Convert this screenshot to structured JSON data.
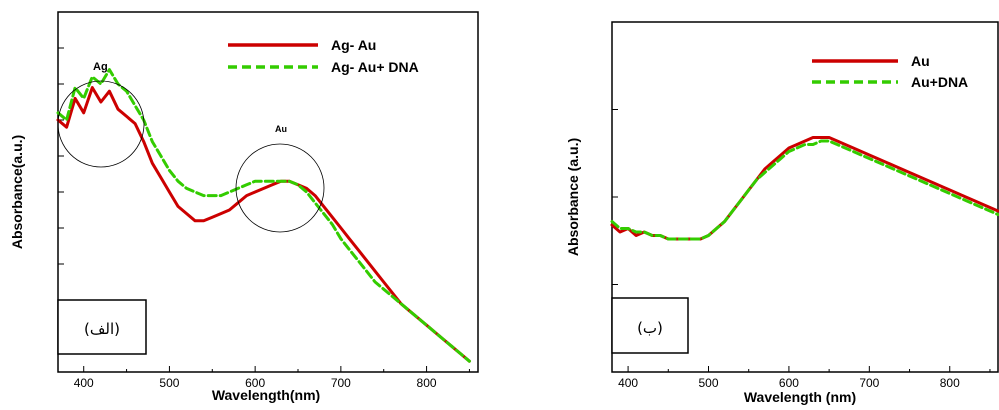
{
  "chart_data": [
    {
      "type": "line",
      "title": "",
      "xlabel": "Wavelength(nm)",
      "ylabel": "Absorbance(a.u.)",
      "xlim": [
        370,
        860
      ],
      "x_ticks": [
        "400",
        "500",
        "600",
        "700",
        "800"
      ],
      "y_ticks_labeled": false,
      "legend_position": "top-right",
      "panel_label": "(الف)",
      "annotations": [
        "Ag",
        "Au"
      ],
      "series": [
        {
          "name": "Ag- Au",
          "color": "#cc0000",
          "style": "solid",
          "x": [
            370,
            380,
            390,
            400,
            410,
            420,
            430,
            440,
            450,
            460,
            470,
            480,
            490,
            500,
            510,
            520,
            530,
            540,
            550,
            560,
            570,
            580,
            590,
            600,
            610,
            620,
            630,
            640,
            650,
            660,
            670,
            680,
            690,
            700,
            710,
            720,
            730,
            740,
            750,
            760,
            770,
            780,
            790,
            800,
            810,
            820,
            830,
            840,
            850
          ],
          "y": [
            0.7,
            0.68,
            0.76,
            0.72,
            0.79,
            0.75,
            0.78,
            0.73,
            0.71,
            0.69,
            0.64,
            0.58,
            0.54,
            0.5,
            0.46,
            0.44,
            0.42,
            0.42,
            0.43,
            0.44,
            0.45,
            0.47,
            0.49,
            0.5,
            0.51,
            0.52,
            0.53,
            0.53,
            0.52,
            0.51,
            0.49,
            0.46,
            0.43,
            0.4,
            0.37,
            0.34,
            0.31,
            0.28,
            0.25,
            0.22,
            0.19,
            0.17,
            0.15,
            0.13,
            0.11,
            0.09,
            0.07,
            0.05,
            0.03
          ]
        },
        {
          "name": "Ag- Au+ DNA",
          "color": "#33cc00",
          "style": "dashed",
          "x": [
            370,
            380,
            390,
            400,
            410,
            420,
            430,
            440,
            450,
            460,
            470,
            480,
            490,
            500,
            510,
            520,
            530,
            540,
            550,
            560,
            570,
            580,
            590,
            600,
            610,
            620,
            630,
            640,
            650,
            660,
            670,
            680,
            690,
            700,
            710,
            720,
            730,
            740,
            750,
            760,
            770,
            780,
            790,
            800,
            810,
            820,
            830,
            840,
            850
          ],
          "y": [
            0.72,
            0.7,
            0.79,
            0.76,
            0.82,
            0.8,
            0.84,
            0.8,
            0.78,
            0.74,
            0.7,
            0.64,
            0.6,
            0.56,
            0.53,
            0.51,
            0.5,
            0.49,
            0.49,
            0.49,
            0.5,
            0.51,
            0.52,
            0.53,
            0.53,
            0.53,
            0.53,
            0.53,
            0.52,
            0.5,
            0.47,
            0.44,
            0.41,
            0.37,
            0.34,
            0.31,
            0.28,
            0.25,
            0.23,
            0.21,
            0.19,
            0.17,
            0.15,
            0.13,
            0.11,
            0.09,
            0.07,
            0.05,
            0.03
          ]
        }
      ]
    },
    {
      "type": "line",
      "title": "",
      "xlabel": "Wavelength (nm)",
      "ylabel": "Absorbance (a.u.)",
      "xlim": [
        380,
        860
      ],
      "x_ticks": [
        "400",
        "500",
        "600",
        "700",
        "800"
      ],
      "y_ticks_labeled": false,
      "legend_position": "top-right",
      "panel_label": "(ب)",
      "series": [
        {
          "name": "Au",
          "color": "#cc0000",
          "style": "solid",
          "x": [
            380,
            390,
            400,
            410,
            420,
            430,
            440,
            450,
            460,
            470,
            480,
            490,
            500,
            510,
            520,
            530,
            540,
            550,
            560,
            570,
            580,
            590,
            600,
            610,
            620,
            630,
            640,
            650,
            660,
            670,
            680,
            690,
            700,
            710,
            720,
            730,
            740,
            750,
            760,
            770,
            780,
            790,
            800,
            810,
            820,
            830,
            840,
            850,
            860
          ],
          "y": [
            0.42,
            0.4,
            0.41,
            0.39,
            0.4,
            0.39,
            0.39,
            0.38,
            0.38,
            0.38,
            0.38,
            0.38,
            0.39,
            0.41,
            0.43,
            0.46,
            0.49,
            0.52,
            0.55,
            0.58,
            0.6,
            0.62,
            0.64,
            0.65,
            0.66,
            0.67,
            0.67,
            0.67,
            0.66,
            0.65,
            0.64,
            0.63,
            0.62,
            0.61,
            0.6,
            0.59,
            0.58,
            0.57,
            0.56,
            0.55,
            0.54,
            0.53,
            0.52,
            0.51,
            0.5,
            0.49,
            0.48,
            0.47,
            0.46
          ]
        },
        {
          "name": "Au+DNA",
          "color": "#33cc00",
          "style": "dashed",
          "x": [
            380,
            390,
            400,
            410,
            420,
            430,
            440,
            450,
            460,
            470,
            480,
            490,
            500,
            510,
            520,
            530,
            540,
            550,
            560,
            570,
            580,
            590,
            600,
            610,
            620,
            630,
            640,
            650,
            660,
            670,
            680,
            690,
            700,
            710,
            720,
            730,
            740,
            750,
            760,
            770,
            780,
            790,
            800,
            810,
            820,
            830,
            840,
            850,
            860
          ],
          "y": [
            0.43,
            0.41,
            0.41,
            0.4,
            0.4,
            0.39,
            0.39,
            0.38,
            0.38,
            0.38,
            0.38,
            0.38,
            0.39,
            0.41,
            0.43,
            0.46,
            0.49,
            0.52,
            0.55,
            0.57,
            0.59,
            0.61,
            0.63,
            0.64,
            0.65,
            0.65,
            0.66,
            0.66,
            0.65,
            0.64,
            0.63,
            0.62,
            0.61,
            0.6,
            0.59,
            0.58,
            0.57,
            0.56,
            0.55,
            0.54,
            0.53,
            0.52,
            0.51,
            0.5,
            0.49,
            0.48,
            0.47,
            0.46,
            0.45
          ]
        }
      ]
    }
  ]
}
